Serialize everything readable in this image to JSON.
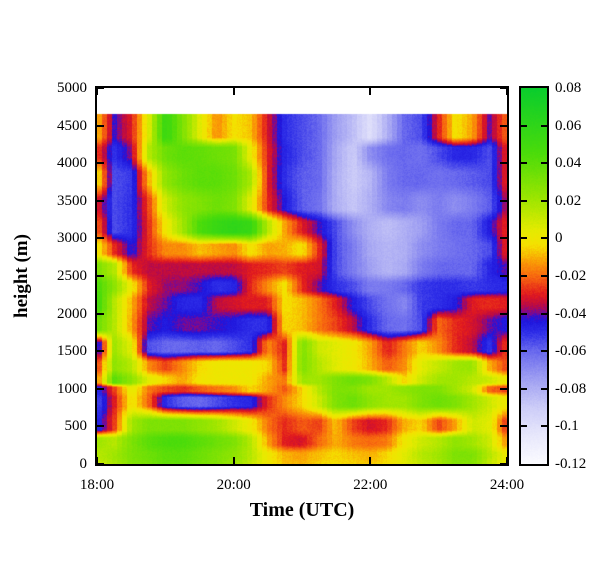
{
  "figure": {
    "background": "#ffffff",
    "frame_color": "#000000"
  },
  "axes": {
    "x": {
      "label": "Time (UTC)",
      "range": [
        18,
        24
      ],
      "tick_values": [
        18,
        20,
        22,
        24
      ],
      "tick_labels": [
        "18:00",
        "20:00",
        "22:00",
        "24:00"
      ]
    },
    "y": {
      "label": "height (m)",
      "range": [
        0,
        5000
      ],
      "tick_values": [
        0,
        500,
        1000,
        1500,
        2000,
        2500,
        3000,
        3500,
        4000,
        4500,
        5000
      ],
      "tick_labels": [
        "0",
        "500",
        "1000",
        "1500",
        "2000",
        "2500",
        "3000",
        "3500",
        "4000",
        "4500",
        "5000"
      ]
    }
  },
  "colorbar": {
    "range": [
      -0.12,
      0.08
    ],
    "tick_values": [
      0.08,
      0.06,
      0.04,
      0.02,
      0,
      -0.02,
      -0.04,
      -0.06,
      -0.08,
      -0.1,
      -0.12
    ],
    "tick_labels": [
      "0.08",
      "0.06",
      "0.04",
      "0.02",
      "0",
      "-0.02",
      "-0.04",
      "-0.06",
      "-0.08",
      "-0.1",
      "-0.12"
    ],
    "palette_stops": [
      [
        -0.12,
        252,
        252,
        255
      ],
      [
        -0.105,
        232,
        232,
        252
      ],
      [
        -0.09,
        205,
        205,
        248
      ],
      [
        -0.075,
        160,
        160,
        242
      ],
      [
        -0.06,
        105,
        105,
        238
      ],
      [
        -0.05,
        45,
        45,
        232
      ],
      [
        -0.043,
        30,
        20,
        220
      ],
      [
        -0.04,
        110,
        10,
        160
      ],
      [
        -0.036,
        185,
        10,
        70
      ],
      [
        -0.03,
        225,
        25,
        30
      ],
      [
        -0.02,
        248,
        105,
        15
      ],
      [
        -0.012,
        250,
        160,
        5
      ],
      [
        -0.004,
        245,
        225,
        0
      ],
      [
        0.004,
        230,
        235,
        0
      ],
      [
        0.02,
        160,
        230,
        0
      ],
      [
        0.045,
        75,
        220,
        10
      ],
      [
        0.08,
        10,
        205,
        45
      ]
    ]
  },
  "chart_data": {
    "type": "heatmap",
    "title": "",
    "xlabel": "Time (UTC)",
    "ylabel": "height (m)",
    "x_range_hours": [
      18,
      24
    ],
    "y_range_m": [
      0,
      5000
    ],
    "value_range": [
      -0.12,
      0.08
    ],
    "data_top_height_m": 4650,
    "legend_position": "colorbar-right",
    "grid": false,
    "x_time_hours": [
      18,
      18.25,
      18.5,
      18.75,
      19,
      19.25,
      19.5,
      19.75,
      20,
      20.25,
      20.5,
      20.75,
      21,
      21.25,
      21.5,
      21.75,
      22,
      22.25,
      22.5,
      22.75,
      23,
      23.25,
      23.5,
      23.75,
      24
    ],
    "y_height_m": [
      4650,
      4400,
      4150,
      3800,
      3450,
      3150,
      2850,
      2600,
      2350,
      2150,
      1850,
      1550,
      1300,
      1100,
      1000,
      850,
      500,
      300,
      100,
      0
    ],
    "values": [
      [
        -0.008,
        -0.042,
        -0.03,
        0.005,
        0.055,
        0.03,
        0.005,
        -0.015,
        -0.003,
        -0.008,
        -0.032,
        -0.05,
        -0.055,
        -0.06,
        -0.075,
        -0.085,
        -0.1,
        -0.08,
        -0.06,
        -0.055,
        -0.03,
        -0.002,
        -0.012,
        -0.04,
        -0.02
      ],
      [
        -0.008,
        -0.042,
        -0.03,
        0.005,
        0.055,
        0.03,
        0.005,
        -0.015,
        -0.003,
        -0.008,
        -0.032,
        -0.05,
        -0.055,
        -0.06,
        -0.075,
        -0.085,
        -0.1,
        -0.08,
        -0.06,
        -0.055,
        -0.03,
        -0.002,
        -0.012,
        -0.04,
        -0.02
      ],
      [
        -0.025,
        -0.05,
        -0.038,
        0.015,
        0.035,
        0.04,
        0.038,
        0.035,
        0.032,
        0.002,
        -0.03,
        -0.048,
        -0.055,
        -0.06,
        -0.078,
        -0.09,
        -0.07,
        -0.062,
        -0.06,
        -0.062,
        -0.055,
        -0.048,
        -0.048,
        -0.055,
        -0.028
      ],
      [
        0.0,
        -0.055,
        -0.052,
        -0.01,
        0.025,
        0.035,
        0.04,
        0.04,
        0.035,
        0.018,
        -0.03,
        -0.05,
        -0.058,
        -0.06,
        -0.08,
        -0.09,
        -0.082,
        -0.065,
        -0.06,
        -0.06,
        -0.062,
        -0.06,
        -0.058,
        -0.055,
        -0.028
      ],
      [
        -0.03,
        -0.055,
        -0.05,
        -0.025,
        0.01,
        0.025,
        0.03,
        0.035,
        0.03,
        0.005,
        -0.028,
        -0.045,
        -0.058,
        -0.062,
        -0.08,
        -0.088,
        -0.08,
        -0.068,
        -0.065,
        -0.07,
        -0.065,
        -0.07,
        -0.065,
        -0.058,
        -0.035
      ],
      [
        -0.02,
        -0.055,
        -0.05,
        -0.028,
        0.0,
        0.02,
        0.045,
        0.055,
        0.06,
        0.055,
        0.015,
        -0.012,
        -0.03,
        -0.042,
        -0.055,
        -0.07,
        -0.08,
        -0.085,
        -0.08,
        -0.075,
        -0.065,
        -0.06,
        -0.06,
        -0.045,
        -0.028
      ],
      [
        0.0,
        -0.028,
        -0.045,
        -0.028,
        -0.015,
        -0.015,
        -0.008,
        -0.012,
        -0.015,
        -0.002,
        -0.012,
        -0.01,
        -0.002,
        -0.028,
        -0.055,
        -0.065,
        -0.078,
        -0.082,
        -0.08,
        -0.07,
        -0.065,
        -0.062,
        -0.06,
        -0.055,
        -0.028
      ],
      [
        0.03,
        0.015,
        -0.028,
        -0.035,
        -0.035,
        -0.035,
        -0.035,
        -0.035,
        -0.035,
        -0.03,
        -0.028,
        -0.025,
        -0.03,
        -0.032,
        -0.055,
        -0.065,
        -0.075,
        -0.082,
        -0.078,
        -0.065,
        -0.06,
        -0.06,
        -0.06,
        -0.048,
        -0.04
      ],
      [
        0.045,
        0.025,
        0.0,
        -0.03,
        -0.038,
        -0.038,
        -0.042,
        -0.05,
        -0.048,
        -0.028,
        -0.015,
        -0.002,
        -0.028,
        -0.04,
        -0.05,
        -0.055,
        -0.065,
        -0.065,
        -0.06,
        -0.052,
        -0.05,
        -0.05,
        -0.052,
        -0.05,
        -0.048
      ],
      [
        0.05,
        0.015,
        -0.01,
        -0.035,
        -0.04,
        -0.048,
        -0.048,
        -0.035,
        -0.032,
        -0.03,
        -0.03,
        -0.003,
        -0.008,
        -0.018,
        -0.03,
        -0.045,
        -0.055,
        -0.062,
        -0.068,
        -0.052,
        -0.05,
        -0.045,
        -0.03,
        -0.028,
        -0.03
      ],
      [
        0.035,
        0.015,
        -0.012,
        -0.04,
        -0.045,
        -0.04,
        -0.04,
        -0.042,
        -0.045,
        -0.05,
        -0.05,
        -0.005,
        -0.008,
        -0.018,
        -0.025,
        -0.035,
        -0.05,
        -0.06,
        -0.062,
        -0.055,
        -0.02,
        -0.028,
        -0.032,
        -0.04,
        -0.045
      ],
      [
        -0.05,
        0.02,
        0.005,
        -0.055,
        -0.06,
        -0.06,
        -0.058,
        -0.06,
        -0.055,
        -0.05,
        -0.015,
        -0.03,
        0.03,
        0.01,
        0.005,
        0.0,
        -0.012,
        -0.03,
        -0.018,
        -0.005,
        -0.015,
        -0.028,
        -0.035,
        -0.05,
        -0.025
      ],
      [
        -0.028,
        0.025,
        0.015,
        -0.015,
        -0.025,
        -0.015,
        -0.005,
        0.0,
        0.0,
        0.0,
        -0.005,
        -0.028,
        0.03,
        0.015,
        0.005,
        0.0,
        -0.01,
        -0.022,
        -0.015,
        0.005,
        0.012,
        0.02,
        0.022,
        -0.01,
        -0.025
      ],
      [
        -0.018,
        0.04,
        0.025,
        0.005,
        -0.005,
        -0.012,
        -0.002,
        0.0,
        0.0,
        0.0,
        -0.012,
        -0.018,
        0.02,
        0.02,
        0.03,
        0.035,
        0.03,
        0.015,
        -0.005,
        0.01,
        0.02,
        0.02,
        0.015,
        0.01,
        0.0
      ],
      [
        -0.05,
        -0.025,
        0.005,
        -0.018,
        -0.025,
        -0.028,
        -0.022,
        -0.018,
        -0.015,
        -0.005,
        -0.012,
        -0.022,
        -0.005,
        0.015,
        0.03,
        0.03,
        0.02,
        0.02,
        0.025,
        0.03,
        0.03,
        0.02,
        0.01,
        -0.02,
        -0.025
      ],
      [
        -0.055,
        -0.03,
        0.0,
        -0.02,
        -0.05,
        -0.058,
        -0.06,
        -0.055,
        -0.05,
        -0.048,
        -0.028,
        -0.015,
        -0.005,
        0.01,
        0.03,
        0.035,
        0.025,
        0.02,
        0.02,
        0.03,
        0.035,
        0.03,
        0.02,
        0.01,
        0.0
      ],
      [
        -0.05,
        -0.025,
        0.02,
        0.03,
        0.03,
        0.03,
        0.025,
        0.02,
        0.01,
        0.0,
        -0.018,
        -0.028,
        -0.022,
        -0.025,
        -0.008,
        -0.025,
        -0.032,
        -0.028,
        -0.01,
        -0.005,
        -0.025,
        -0.012,
        0.01,
        0.005,
        -0.028
      ],
      [
        0.02,
        0.015,
        0.03,
        0.04,
        0.045,
        0.045,
        0.04,
        0.035,
        0.03,
        0.015,
        -0.012,
        -0.03,
        -0.032,
        -0.02,
        -0.01,
        -0.018,
        -0.02,
        -0.018,
        0.0,
        0.01,
        0.015,
        0.025,
        0.02,
        0.01,
        -0.015
      ],
      [
        0.015,
        0.02,
        0.03,
        0.035,
        0.04,
        0.04,
        0.035,
        0.03,
        0.025,
        0.015,
        0.0,
        -0.01,
        -0.012,
        -0.008,
        -0.005,
        -0.008,
        -0.01,
        -0.005,
        0.005,
        0.015,
        0.02,
        0.03,
        0.03,
        0.015,
        0.0
      ],
      [
        0.01,
        0.018,
        0.028,
        0.032,
        0.038,
        0.038,
        0.032,
        0.028,
        0.022,
        0.012,
        0.0,
        -0.008,
        -0.01,
        -0.006,
        -0.004,
        -0.006,
        -0.008,
        -0.004,
        0.005,
        0.012,
        0.018,
        0.028,
        0.028,
        0.012,
        0.0
      ]
    ]
  }
}
